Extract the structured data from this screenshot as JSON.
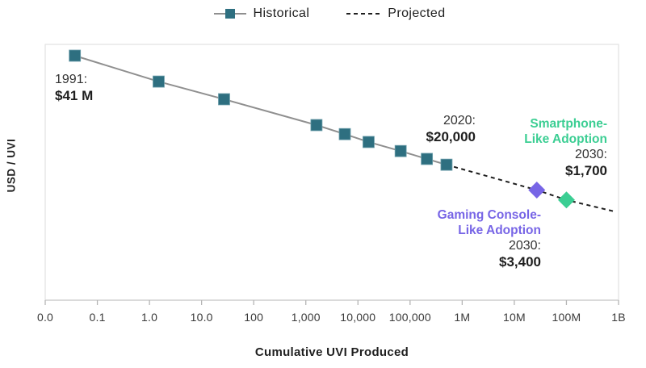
{
  "colors": {
    "teal": "#2E6F80",
    "teal_edge": "#6FA0AC",
    "line_gray": "#8F8F8F",
    "dash_black": "#1F1F1F",
    "green": "#3BCE93",
    "purple": "#7765E6",
    "border": "#E3E3E3",
    "axis": "#C9C9C9",
    "tick": "#B5B5B5",
    "tick_label": "#3A3A3A"
  },
  "legend": {
    "items": [
      {
        "label": "Historical",
        "type": "solid-line-square-marker"
      },
      {
        "label": "Projected",
        "type": "dashed-line"
      }
    ]
  },
  "axes": {
    "y_title": "USD / UVI",
    "x_title": "Cumulative UVI Produced"
  },
  "annotations": {
    "start": {
      "line1": "1991:",
      "line2": "$41 M"
    },
    "y2020": {
      "line1": "2020:",
      "line2": "$20,000"
    },
    "smartphone": {
      "title1": "Smartphone-",
      "title2": "Like Adoption",
      "line1": "2030:",
      "line2": "$1,700"
    },
    "gaming": {
      "title1": "Gaming Console-",
      "title2": "Like Adoption",
      "line1": "2030:",
      "line2": "$3,400"
    }
  },
  "chart_data": {
    "type": "line",
    "x_scale": "log",
    "y_scale": "log",
    "title": "",
    "xlabel": "Cumulative UVI Produced",
    "ylabel": "USD / UVI",
    "x_ticks": [
      "0.0",
      "0.1",
      "1.0",
      "10.0",
      "100",
      "1,000",
      "10,000",
      "100,000",
      "1M",
      "10M",
      "100M",
      "1B"
    ],
    "x_range_log_decades": 11,
    "grid": false,
    "legend_position": "top-center",
    "series": [
      {
        "name": "Historical",
        "style": "solid",
        "marker": "square",
        "color": "#2E6F80",
        "points": [
          [
            0.037,
            41000000
          ],
          [
            1.5,
            6700000
          ],
          [
            27,
            1950000
          ],
          [
            1600,
            320000
          ],
          [
            5600,
            170000
          ],
          [
            16000,
            98000
          ],
          [
            66000,
            52000
          ],
          [
            210000,
            30000
          ],
          [
            500000,
            20000
          ]
        ]
      },
      {
        "name": "Projected",
        "style": "dashed",
        "marker": "none",
        "color": "#1F1F1F",
        "points": [
          [
            500000,
            20000
          ],
          [
            27000000,
            3400
          ],
          [
            100000000,
            1700
          ],
          [
            900000000,
            740
          ]
        ]
      }
    ],
    "highlight_points": [
      {
        "id": "gaming-console-2030",
        "x": 27000000,
        "y": 3400,
        "marker": "diamond",
        "color": "#7765E6",
        "label": "Gaming Console-Like Adoption 2030: $3,400"
      },
      {
        "id": "smartphone-2030",
        "x": 100000000,
        "y": 1700,
        "marker": "diamond",
        "color": "#3BCE93",
        "label": "Smartphone-Like Adoption 2030: $1,700"
      }
    ],
    "callouts": [
      {
        "x": 0.037,
        "y": 41000000,
        "text": "1991: $41 M"
      },
      {
        "x": 500000,
        "y": 20000,
        "text": "2020: $20,000"
      }
    ]
  }
}
